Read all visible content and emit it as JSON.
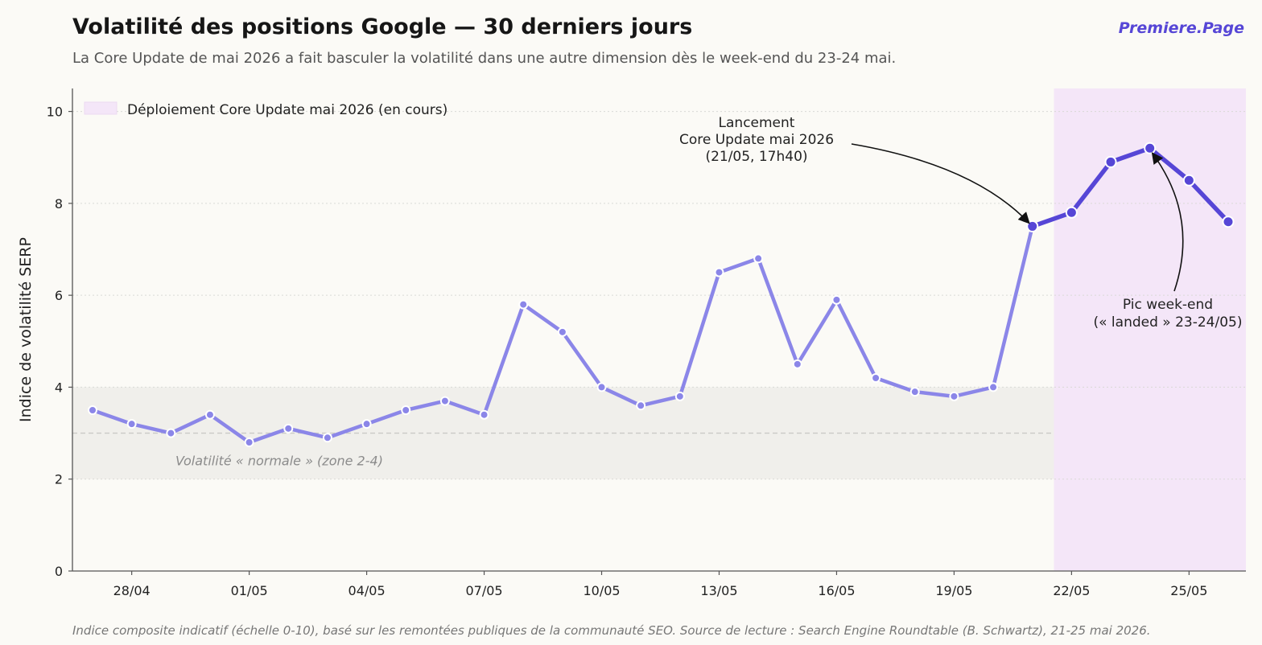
{
  "header": {
    "title": "Volatilité des positions Google — 30 derniers jours",
    "subtitle": "La Core Update de mai 2026 a fait basculer la volatilité dans une autre dimension dès le week-end du 23-24 mai.",
    "brand": "Premiere.Page"
  },
  "footnote": "Indice composite indicatif (échelle 0-10), basé sur les remontées publiques de la communauté SEO. Source de lecture : Search Engine Roundtable (B. Schwartz), 21-25 mai 2026.",
  "chart_data": {
    "type": "line",
    "title": "Volatilité des positions Google — 30 derniers jours",
    "ylabel": "Indice de volatilité SERP",
    "xlabel": "",
    "ylim": [
      0,
      10.5
    ],
    "yticks": [
      0,
      2,
      4,
      6,
      8,
      10
    ],
    "xticks": [
      "28/04",
      "01/05",
      "04/05",
      "07/05",
      "10/05",
      "13/05",
      "16/05",
      "19/05",
      "22/05",
      "25/05"
    ],
    "grid": "horizontal dotted",
    "legend_position": "top-left",
    "legend": "Déploiement Core Update mai 2026 (en cours)",
    "dates": [
      "27/04",
      "28/04",
      "29/04",
      "30/04",
      "01/05",
      "02/05",
      "03/05",
      "04/05",
      "05/05",
      "06/05",
      "07/05",
      "08/05",
      "09/05",
      "10/05",
      "11/05",
      "12/05",
      "13/05",
      "14/05",
      "15/05",
      "16/05",
      "17/05",
      "18/05",
      "19/05",
      "20/05",
      "21/05",
      "22/05",
      "23/05",
      "24/05",
      "25/05",
      "26/05"
    ],
    "values": [
      3.5,
      3.2,
      3.0,
      3.4,
      2.8,
      3.1,
      2.9,
      3.2,
      3.5,
      3.7,
      3.4,
      5.8,
      5.2,
      4.0,
      3.6,
      3.8,
      6.5,
      6.8,
      4.5,
      5.9,
      4.2,
      3.9,
      3.8,
      4.0,
      7.5,
      7.8,
      8.9,
      9.2,
      8.5,
      7.6
    ],
    "normal_zone": {
      "range": [
        2,
        4
      ],
      "reference": 3,
      "label": "Volatilité « normale » (zone 2-4)"
    },
    "rollout_period": {
      "start": "22/05",
      "end": "26/05"
    },
    "colors": {
      "line": "#8b86e8",
      "highlight": "#5646d6",
      "rollout": "#f4e6f8",
      "zone": "#f0efeb"
    },
    "annotations": [
      {
        "lines": [
          "Lancement",
          "Core Update mai 2026",
          "(21/05, 17h40)"
        ],
        "target_date": "21/05"
      },
      {
        "lines": [
          "Pic week-end",
          "(« landed » 23-24/05)"
        ],
        "target_date": "24/05"
      }
    ]
  }
}
